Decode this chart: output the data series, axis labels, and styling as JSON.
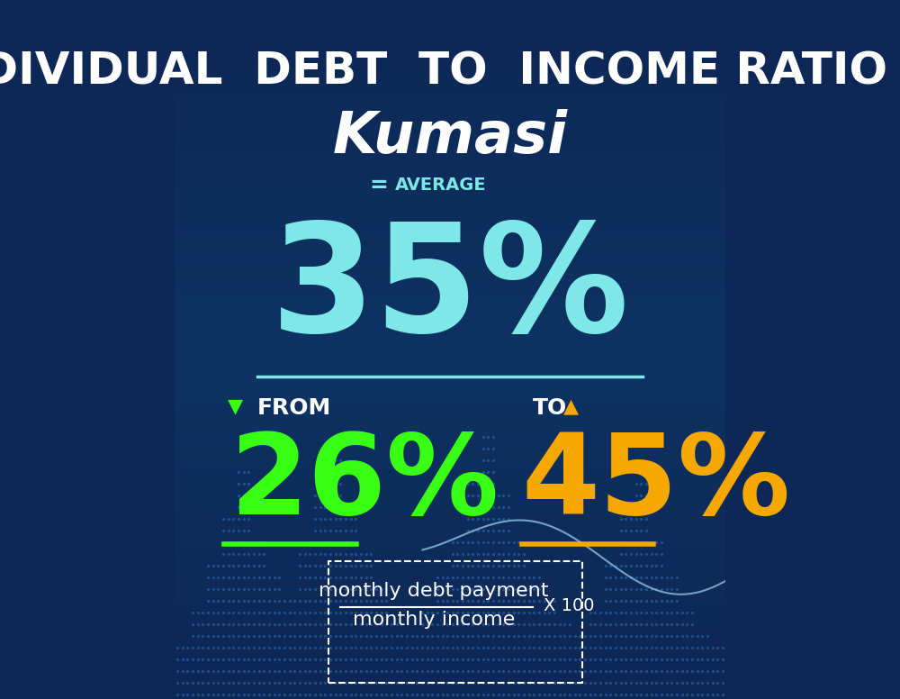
{
  "title_line1": "INDIVIDUAL  DEBT  TO  INCOME RATIO  IN",
  "title_line2": "Kumasi",
  "bg_color_top": "#0d2756",
  "bg_color_bottom": "#0a3a6b",
  "average_label": "AVERAGE",
  "average_value": "35%",
  "average_color": "#7ee8e8",
  "from_label": "FROM",
  "from_value": "26%",
  "from_color": "#39ff14",
  "to_label": "TO",
  "to_value": "45%",
  "to_color": "#f5a800",
  "formula_numerator": "monthly debt payment",
  "formula_denominator": "monthly income",
  "formula_multiplier": "X 100",
  "white_color": "#ffffff",
  "cyan_color": "#7ee8e8",
  "title_fontsize": 36,
  "subtitle_fontsize": 46,
  "average_num_fontsize": 120,
  "from_to_num_fontsize": 90,
  "label_fontsize": 20
}
